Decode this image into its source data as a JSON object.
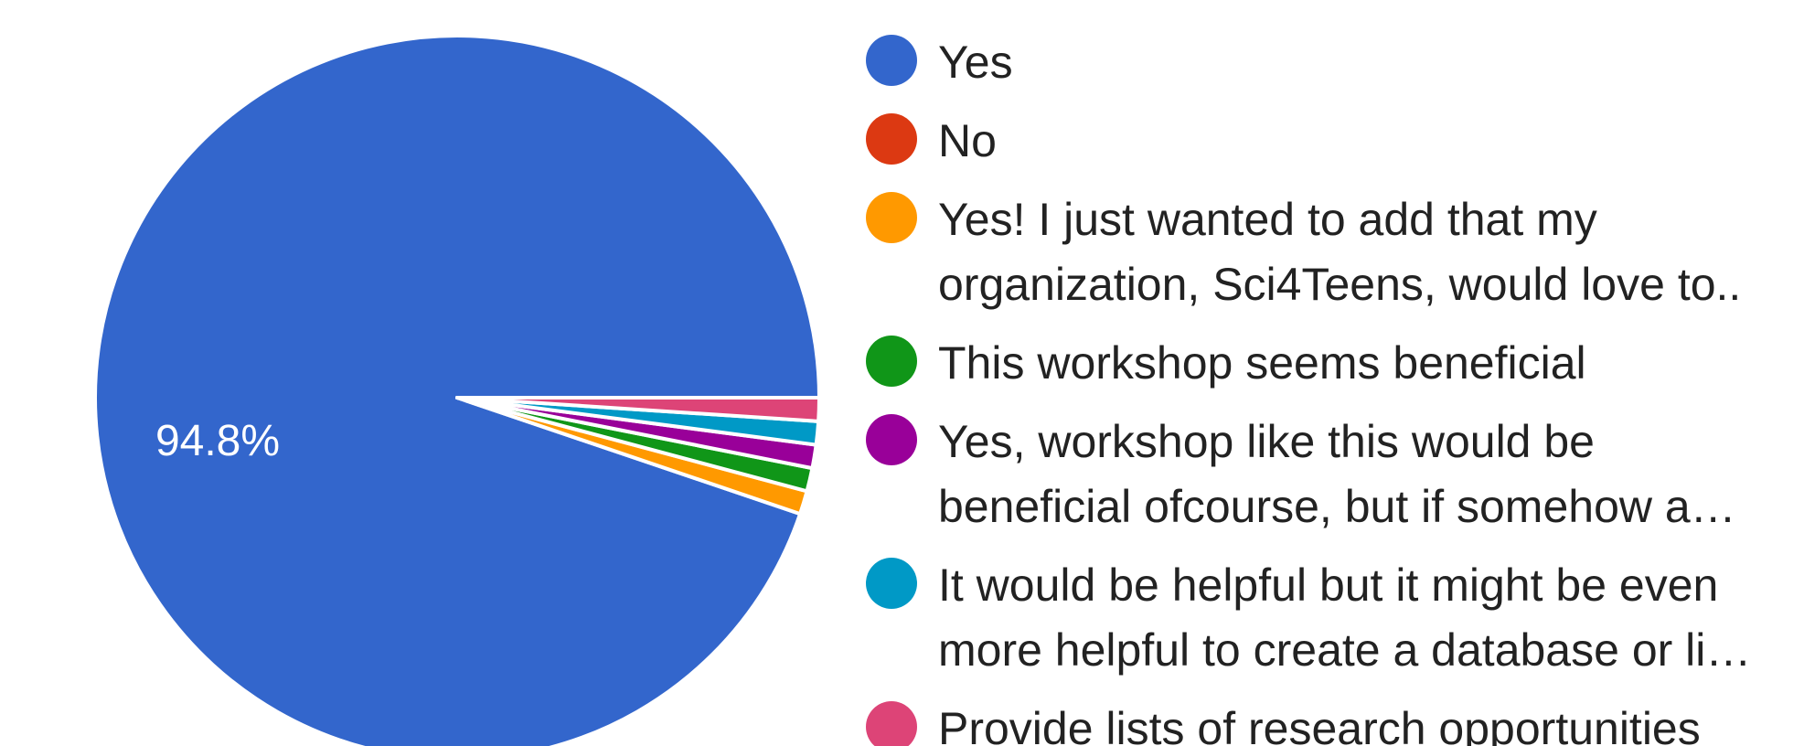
{
  "chart_data": {
    "type": "pie",
    "title": "",
    "slices": [
      {
        "label_lines": [
          "Yes"
        ],
        "value": 94.8,
        "color": "#3366cc",
        "data_label": "94.8%"
      },
      {
        "label_lines": [
          "No"
        ],
        "value": 0.0,
        "color": "#dc3912",
        "data_label": ""
      },
      {
        "label_lines": [
          "Yes! I just wanted to add that my",
          "organization, Sci4Teens, would love to.."
        ],
        "value": 1.04,
        "color": "#ff9900",
        "data_label": ""
      },
      {
        "label_lines": [
          "This workshop seems beneficial"
        ],
        "value": 1.04,
        "color": "#109618",
        "data_label": ""
      },
      {
        "label_lines": [
          "Yes, workshop like this would be",
          "beneficial ofcourse, but if somehow a…"
        ],
        "value": 1.04,
        "color": "#990099",
        "data_label": ""
      },
      {
        "label_lines": [
          "It would be helpful but it might be even",
          "more helpful to create a database or li…"
        ],
        "value": 1.04,
        "color": "#0099c6",
        "data_label": ""
      },
      {
        "label_lines": [
          "Provide lists of research opportunities"
        ],
        "value": 1.04,
        "color": "#dd4477",
        "data_label": ""
      }
    ],
    "start_angle": "3 o'clock, counter-clockwise",
    "legend_placement": "right"
  }
}
